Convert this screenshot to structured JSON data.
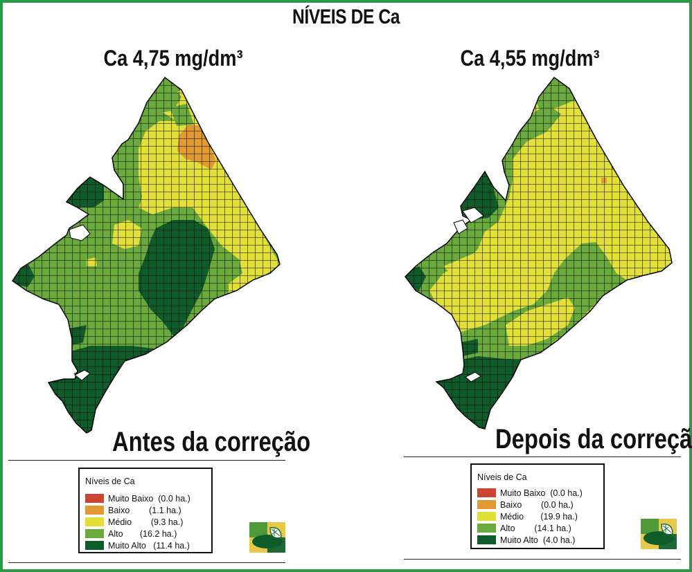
{
  "title": "NÍVEIS DE Ca",
  "maps": [
    {
      "subtitle": "Ca 4,75 mg/dm³",
      "caption": "Antes da correção",
      "legend": {
        "title": "Níveis de Ca",
        "items": [
          {
            "label": "Muito Baixo  (0.0 ha.)",
            "color": "#cc4433",
            "area_ha": 0.0
          },
          {
            "label": "Baixo        (1.1 ha.)",
            "color": "#e09a30",
            "area_ha": 1.1
          },
          {
            "label": "Médio        (9.3 ha.)",
            "color": "#e2e036",
            "area_ha": 9.3
          },
          {
            "label": "Alto       (16.2 ha.)",
            "color": "#6aaa3c",
            "area_ha": 16.2
          },
          {
            "label": "Muito Alto   (11.4 ha.)",
            "color": "#0d5c2a",
            "area_ha": 11.4
          }
        ]
      }
    },
    {
      "subtitle": "Ca 4,55 mg/dm³",
      "caption": "Depois da correção",
      "legend": {
        "title": "Níveis de Ca",
        "items": [
          {
            "label": "Muito Baixo  (0.0 ha.)",
            "color": "#cc4433",
            "area_ha": 0.0
          },
          {
            "label": "Baixo        (0.0 ha.)",
            "color": "#e09a30",
            "area_ha": 0.0
          },
          {
            "label": "Médio       (19.9 ha.)",
            "color": "#e2e036",
            "area_ha": 19.9
          },
          {
            "label": "Alto        (14.1 ha.)",
            "color": "#6aaa3c",
            "area_ha": 14.1
          },
          {
            "label": "Muito Alto  (4.0 ha.)",
            "color": "#0d5c2a",
            "area_ha": 4.0
          }
        ]
      }
    }
  ]
}
